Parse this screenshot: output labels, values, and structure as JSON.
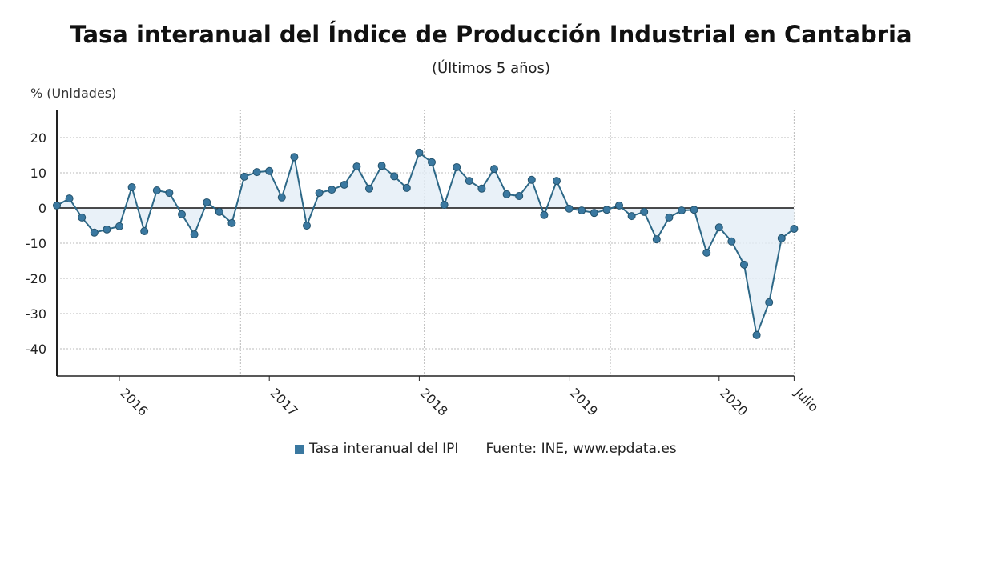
{
  "chart_data": {
    "type": "line",
    "title": "Tasa interanual del Índice de Producción Industrial en Cantabria",
    "subtitle": "(Últimos 5 años)",
    "ylabel": "% (Unidades)",
    "ylim": [
      -48,
      28
    ],
    "yticks": [
      20,
      10,
      0,
      -10,
      -20,
      -30,
      -40
    ],
    "xticks": [
      {
        "label": "2016",
        "index": 5
      },
      {
        "label": "2017",
        "index": 17
      },
      {
        "label": "2018",
        "index": 29
      },
      {
        "label": "2019",
        "index": 41
      },
      {
        "label": "2020",
        "index": 53
      },
      {
        "label": "Julio",
        "index": 59
      }
    ],
    "series": [
      {
        "name": "Tasa interanual del IPI",
        "color": "#3a78a0",
        "values": [
          0.7,
          2.7,
          -2.7,
          -7,
          -6.1,
          -5.2,
          5.9,
          -6.6,
          5,
          4.3,
          -1.8,
          -7.5,
          1.6,
          -1.1,
          -4.3,
          8.9,
          10.2,
          10.5,
          3,
          14.5,
          -5,
          4.3,
          5.2,
          6.6,
          11.8,
          5.5,
          12,
          9,
          5.7,
          15.7,
          13,
          0.9,
          11.6,
          7.7,
          5.5,
          11.1,
          3.9,
          3.4,
          8,
          -2,
          7.7,
          -0.2,
          -0.7,
          -1.4,
          -0.5,
          0.7,
          -2.3,
          -1.1,
          -8.9,
          -2.7,
          -0.7,
          -0.5,
          -12.7,
          -5.5,
          -9.5,
          -16.1,
          -36.1,
          -26.8,
          -8.6,
          -5.9
        ]
      }
    ],
    "legend": "bottom",
    "source": "Fuente: INE, www.epdata.es"
  }
}
